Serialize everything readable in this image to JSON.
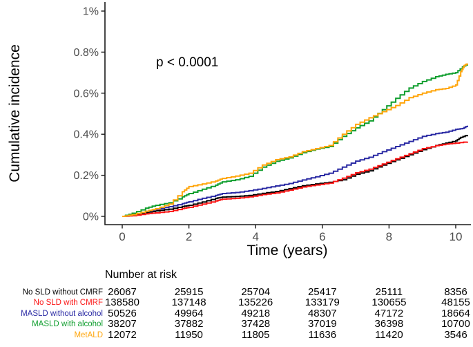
{
  "figure": {
    "y_label": "Cumulative incidence",
    "x_label": "Time (years)",
    "p_value": "p < 0.0001"
  },
  "chart_data": {
    "type": "line",
    "subtype": "step-cumulative-incidence",
    "title": "",
    "xlabel": "Time (years)",
    "ylabel": "Cumulative incidence",
    "annotation": "p < 0.0001",
    "xlim": [
      -0.52,
      10.45
    ],
    "ylim": [
      0,
      1.04
    ],
    "grid": false,
    "x_ticks": [
      0,
      2,
      4,
      6,
      8,
      10
    ],
    "x_tick_labels": [
      "0",
      "2",
      "4",
      "6",
      "8",
      "10"
    ],
    "y_ticks": [
      0,
      0.2,
      0.4,
      0.6,
      0.8,
      1
    ],
    "y_tick_labels": [
      "0%",
      "0.2%",
      "0.4%",
      "0.6%",
      "0.8%",
      "1%"
    ],
    "y_units": "percent",
    "series": [
      {
        "name": "No SLD without CMRF",
        "color": "#000000",
        "points": [
          [
            0,
            0
          ],
          [
            0.3,
            0.006
          ],
          [
            0.7,
            0.018
          ],
          [
            1,
            0.027
          ],
          [
            1.4,
            0.035
          ],
          [
            1.8,
            0.048
          ],
          [
            2,
            0.054
          ],
          [
            2.4,
            0.07
          ],
          [
            2.8,
            0.088
          ],
          [
            3,
            0.094
          ],
          [
            3.4,
            0.097
          ],
          [
            3.8,
            0.102
          ],
          [
            4.2,
            0.112
          ],
          [
            4.6,
            0.121
          ],
          [
            5,
            0.135
          ],
          [
            5.4,
            0.149
          ],
          [
            5.8,
            0.158
          ],
          [
            6.2,
            0.166
          ],
          [
            6.6,
            0.178
          ],
          [
            7,
            0.205
          ],
          [
            7.4,
            0.222
          ],
          [
            7.8,
            0.25
          ],
          [
            8.2,
            0.275
          ],
          [
            8.6,
            0.3
          ],
          [
            9,
            0.325
          ],
          [
            9.4,
            0.345
          ],
          [
            9.7,
            0.357
          ],
          [
            10,
            0.368
          ],
          [
            10.15,
            0.385
          ],
          [
            10.35,
            0.397
          ]
        ]
      },
      {
        "name": "No SLD with CMRF",
        "color": "#fb1414",
        "points": [
          [
            0,
            0
          ],
          [
            0.3,
            0.003
          ],
          [
            0.7,
            0.012
          ],
          [
            1,
            0.017
          ],
          [
            1.4,
            0.024
          ],
          [
            1.8,
            0.038
          ],
          [
            2,
            0.044
          ],
          [
            2.4,
            0.06
          ],
          [
            2.8,
            0.075
          ],
          [
            3,
            0.084
          ],
          [
            3.4,
            0.088
          ],
          [
            3.8,
            0.095
          ],
          [
            4.2,
            0.106
          ],
          [
            4.6,
            0.114
          ],
          [
            5,
            0.128
          ],
          [
            5.4,
            0.143
          ],
          [
            5.8,
            0.153
          ],
          [
            6.2,
            0.162
          ],
          [
            6.6,
            0.186
          ],
          [
            7,
            0.212
          ],
          [
            7.4,
            0.23
          ],
          [
            7.8,
            0.255
          ],
          [
            8.2,
            0.28
          ],
          [
            8.6,
            0.305
          ],
          [
            9,
            0.33
          ],
          [
            9.4,
            0.344
          ],
          [
            9.7,
            0.352
          ],
          [
            10,
            0.357
          ],
          [
            10.35,
            0.364
          ]
        ]
      },
      {
        "name": "MASLD without alcohol",
        "color": "#2a2aa4",
        "points": [
          [
            0,
            0
          ],
          [
            0.3,
            0.008
          ],
          [
            0.7,
            0.024
          ],
          [
            1,
            0.034
          ],
          [
            1.4,
            0.047
          ],
          [
            1.8,
            0.062
          ],
          [
            2,
            0.071
          ],
          [
            2.4,
            0.088
          ],
          [
            2.8,
            0.102
          ],
          [
            3,
            0.111
          ],
          [
            3.4,
            0.116
          ],
          [
            3.8,
            0.125
          ],
          [
            4.2,
            0.136
          ],
          [
            4.6,
            0.148
          ],
          [
            5,
            0.16
          ],
          [
            5.4,
            0.177
          ],
          [
            5.8,
            0.193
          ],
          [
            6.2,
            0.21
          ],
          [
            6.6,
            0.24
          ],
          [
            7,
            0.269
          ],
          [
            7.4,
            0.288
          ],
          [
            7.8,
            0.315
          ],
          [
            8.2,
            0.34
          ],
          [
            8.6,
            0.365
          ],
          [
            9,
            0.39
          ],
          [
            9.4,
            0.403
          ],
          [
            9.7,
            0.41
          ],
          [
            10,
            0.424
          ],
          [
            10.2,
            0.428
          ],
          [
            10.35,
            0.442
          ]
        ]
      },
      {
        "name": "MASLD with alcohol",
        "color": "#0f9e2e",
        "points": [
          [
            0,
            0
          ],
          [
            0.3,
            0.015
          ],
          [
            0.7,
            0.04
          ],
          [
            1,
            0.054
          ],
          [
            1.4,
            0.066
          ],
          [
            1.8,
            0.095
          ],
          [
            2,
            0.111
          ],
          [
            2.4,
            0.132
          ],
          [
            2.8,
            0.152
          ],
          [
            3,
            0.168
          ],
          [
            3.4,
            0.178
          ],
          [
            3.8,
            0.195
          ],
          [
            4.2,
            0.24
          ],
          [
            4.6,
            0.268
          ],
          [
            5,
            0.285
          ],
          [
            5.4,
            0.31
          ],
          [
            5.8,
            0.328
          ],
          [
            6.2,
            0.34
          ],
          [
            6.6,
            0.39
          ],
          [
            7,
            0.431
          ],
          [
            7.4,
            0.465
          ],
          [
            7.8,
            0.52
          ],
          [
            8.2,
            0.575
          ],
          [
            8.6,
            0.625
          ],
          [
            9,
            0.657
          ],
          [
            9.4,
            0.68
          ],
          [
            9.7,
            0.692
          ],
          [
            10,
            0.7
          ],
          [
            10.2,
            0.728
          ],
          [
            10.35,
            0.742
          ]
        ]
      },
      {
        "name": "MetALD",
        "color": "#ffa50a",
        "points": [
          [
            0,
            0
          ],
          [
            0.3,
            0.008
          ],
          [
            0.7,
            0.025
          ],
          [
            1,
            0.037
          ],
          [
            1.4,
            0.06
          ],
          [
            1.8,
            0.12
          ],
          [
            2,
            0.145
          ],
          [
            2.4,
            0.158
          ],
          [
            2.8,
            0.172
          ],
          [
            3,
            0.185
          ],
          [
            3.4,
            0.196
          ],
          [
            3.8,
            0.21
          ],
          [
            4.2,
            0.25
          ],
          [
            4.6,
            0.276
          ],
          [
            5,
            0.29
          ],
          [
            5.4,
            0.315
          ],
          [
            5.8,
            0.33
          ],
          [
            6.2,
            0.345
          ],
          [
            6.6,
            0.4
          ],
          [
            7,
            0.448
          ],
          [
            7.4,
            0.48
          ],
          [
            7.8,
            0.51
          ],
          [
            8.2,
            0.54
          ],
          [
            8.6,
            0.578
          ],
          [
            9,
            0.6
          ],
          [
            9.4,
            0.617
          ],
          [
            9.7,
            0.623
          ],
          [
            10,
            0.64
          ],
          [
            10.15,
            0.705
          ],
          [
            10.25,
            0.735
          ],
          [
            10.35,
            0.745
          ]
        ]
      }
    ]
  },
  "risk_table": {
    "header": "Number at risk",
    "time_points": [
      0,
      2,
      4,
      6,
      8,
      10
    ],
    "rows": [
      {
        "label": "No SLD without CMRF",
        "color": "#000000",
        "values": [
          "26067",
          "25915",
          "25704",
          "25417",
          "25111",
          "8356"
        ]
      },
      {
        "label": "No SLD with CMRF",
        "color": "#fb1414",
        "values": [
          "138580",
          "137148",
          "135226",
          "133179",
          "130655",
          "48155"
        ]
      },
      {
        "label": "MASLD without alcohol",
        "color": "#2a2aa4",
        "values": [
          "50526",
          "49964",
          "49218",
          "48307",
          "47172",
          "18664"
        ]
      },
      {
        "label": "MASLD with alcohol",
        "color": "#0f9e2e",
        "values": [
          "38207",
          "37882",
          "37428",
          "37019",
          "36398",
          "10700"
        ]
      },
      {
        "label": "MetALD",
        "color": "#ffa50a",
        "values": [
          "12072",
          "11950",
          "11805",
          "11636",
          "11420",
          "3546"
        ]
      }
    ]
  }
}
